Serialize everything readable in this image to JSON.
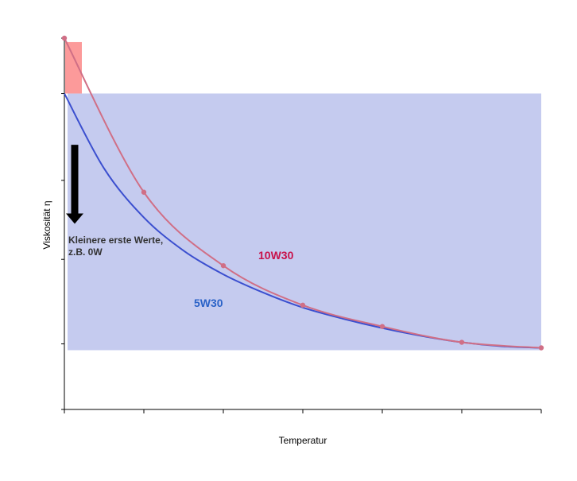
{
  "chart_data": {
    "type": "line",
    "title": "",
    "xlabel": "Temperatur",
    "ylabel": "Viskosität η",
    "xlim": [
      0,
      6
    ],
    "ylim": [
      0,
      4.7
    ],
    "grid": false,
    "series": [
      {
        "name": "10W30",
        "color": "#d06f86",
        "x": [
          0,
          1,
          2,
          3,
          4,
          5,
          6
        ],
        "values": [
          4.7,
          2.75,
          1.82,
          1.32,
          1.05,
          0.85,
          0.78
        ]
      },
      {
        "name": "5W30",
        "color": "#3b4fcf",
        "x": [
          0,
          0.5,
          1,
          1.5,
          2,
          2.5,
          3,
          3.5,
          4,
          4.5,
          5,
          5.5,
          6
        ],
        "values": [
          4.0,
          3.05,
          2.43,
          2.01,
          1.71,
          1.48,
          1.29,
          1.15,
          1.03,
          0.93,
          0.85,
          0.8,
          0.78
        ]
      }
    ],
    "regions": [
      {
        "name": "winter-range",
        "color": "#fc9a9a",
        "x": [
          0,
          0.22
        ],
        "y": [
          4.0,
          4.65
        ]
      },
      {
        "name": "viscosity-range",
        "color": "#c5cbef",
        "x": [
          0,
          6
        ],
        "y": [
          0.75,
          4.0
        ]
      }
    ],
    "annotations": [
      {
        "text": "Kleinere erste Werte,",
        "color": "#333333"
      },
      {
        "text": "z.B. 0W",
        "color": "#333333"
      }
    ],
    "arrow": {
      "x": 0.13,
      "y_from": 3.35,
      "y_to": 2.35,
      "color": "#000000"
    }
  }
}
